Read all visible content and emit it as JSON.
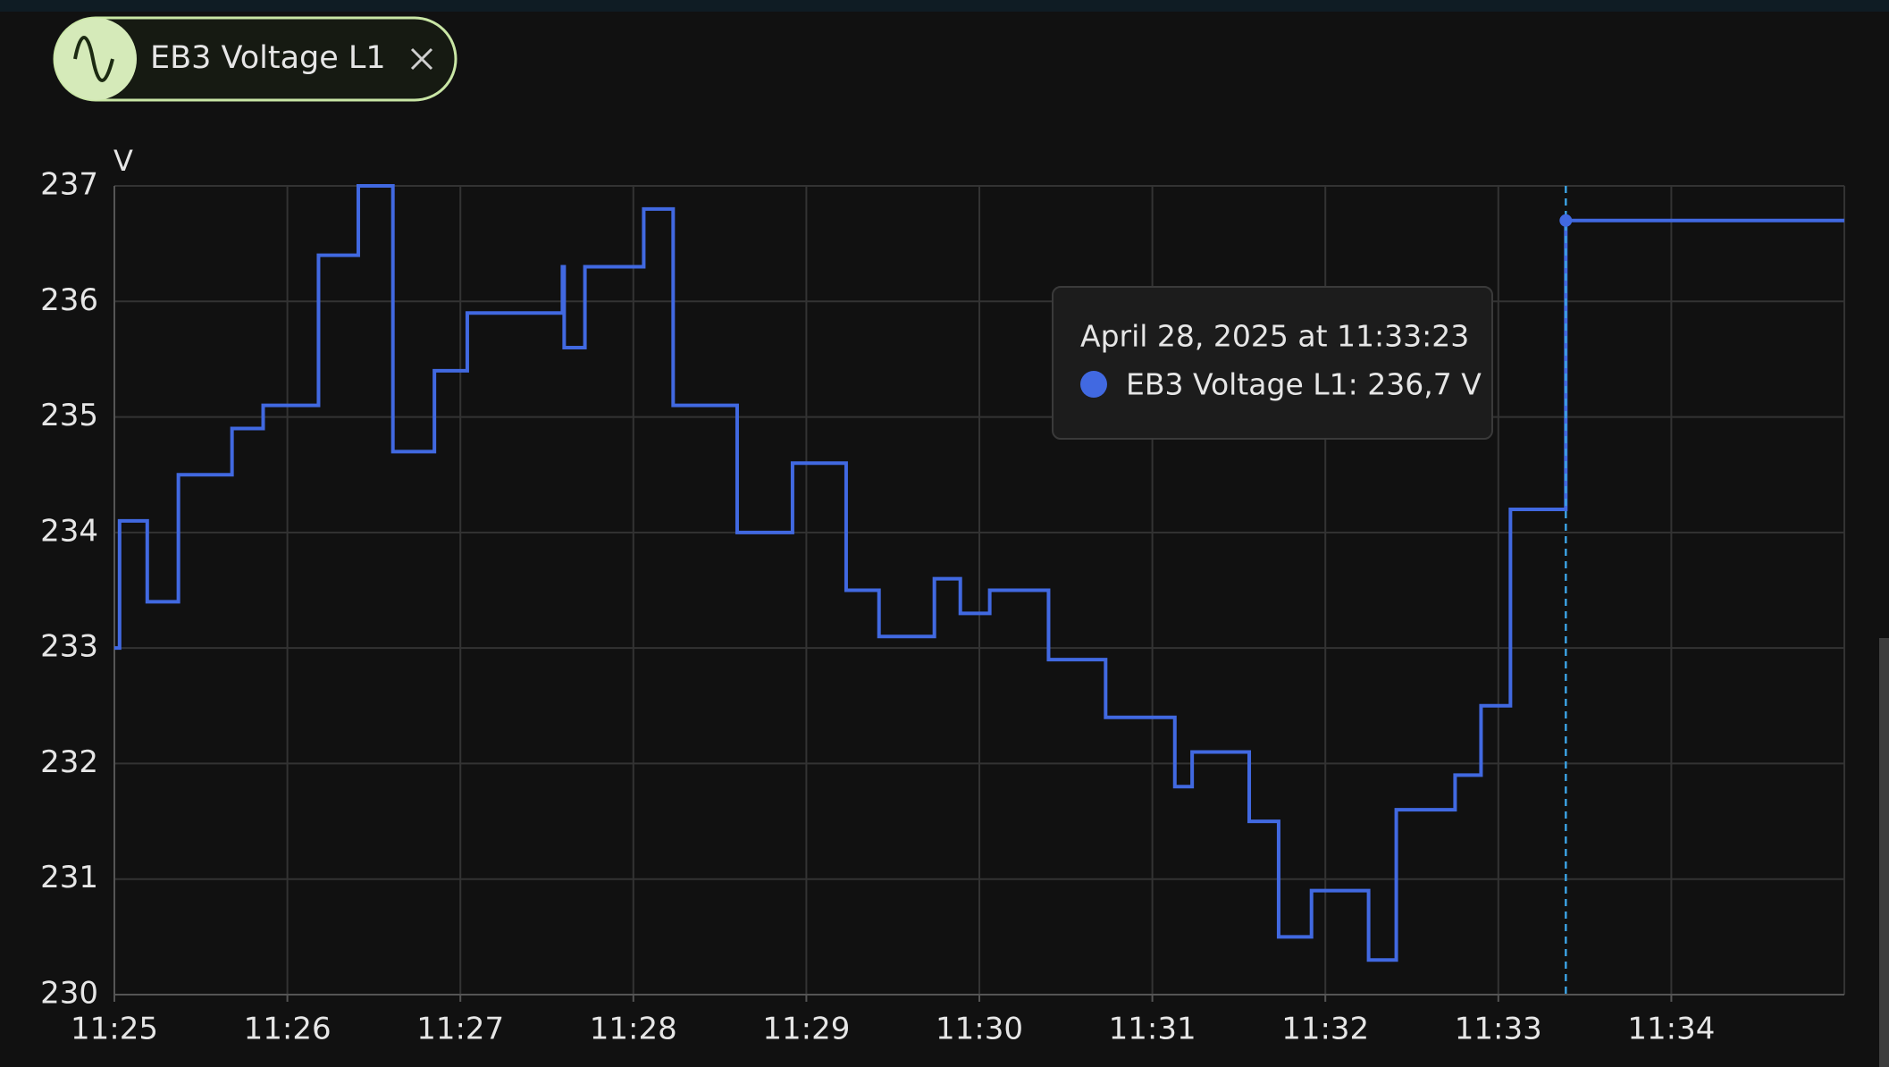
{
  "chart_data": {
    "type": "step-line",
    "y_unit": "V",
    "x": [
      685.0,
      685.03,
      685.19,
      685.37,
      685.68,
      685.86,
      686.18,
      686.41,
      686.61,
      686.85,
      687.04,
      687.59,
      687.6,
      687.72,
      688.06,
      688.23,
      688.6,
      688.92,
      689.23,
      689.42,
      689.74,
      689.89,
      690.06,
      690.4,
      690.73,
      691.13,
      691.23,
      691.56,
      691.73,
      691.92,
      692.25,
      692.41,
      692.75,
      692.9,
      693.07,
      693.39,
      695.0
    ],
    "series": [
      {
        "name": "EB3 Voltage L1",
        "color": "#4169e1",
        "values": [
          233.0,
          234.1,
          233.4,
          234.5,
          234.9,
          235.1,
          236.4,
          237.0,
          234.7,
          235.4,
          235.9,
          236.3,
          235.6,
          236.3,
          236.8,
          235.1,
          234.0,
          234.6,
          233.5,
          233.1,
          233.6,
          233.3,
          233.5,
          232.9,
          232.4,
          231.8,
          232.1,
          231.5,
          230.5,
          230.9,
          230.3,
          231.6,
          231.9,
          232.5,
          234.2,
          236.7,
          236.7
        ]
      }
    ],
    "xlim": [
      685,
      695
    ],
    "xticks": [
      {
        "value": 685,
        "label": "11:25"
      },
      {
        "value": 686,
        "label": "11:26"
      },
      {
        "value": 687,
        "label": "11:27"
      },
      {
        "value": 688,
        "label": "11:28"
      },
      {
        "value": 689,
        "label": "11:29"
      },
      {
        "value": 690,
        "label": "11:30"
      },
      {
        "value": 691,
        "label": "11:31"
      },
      {
        "value": 692,
        "label": "11:32"
      },
      {
        "value": 693,
        "label": "11:33"
      },
      {
        "value": 694,
        "label": "11:34"
      }
    ],
    "ylim": [
      230,
      237
    ],
    "yticks": [
      230,
      231,
      232,
      233,
      234,
      235,
      236,
      237
    ],
    "grid": true,
    "tooltip": {
      "index": 35,
      "title": "April 28, 2025 at 11:33:23",
      "label": "EB3 Voltage L1: 236,7 V"
    }
  }
}
